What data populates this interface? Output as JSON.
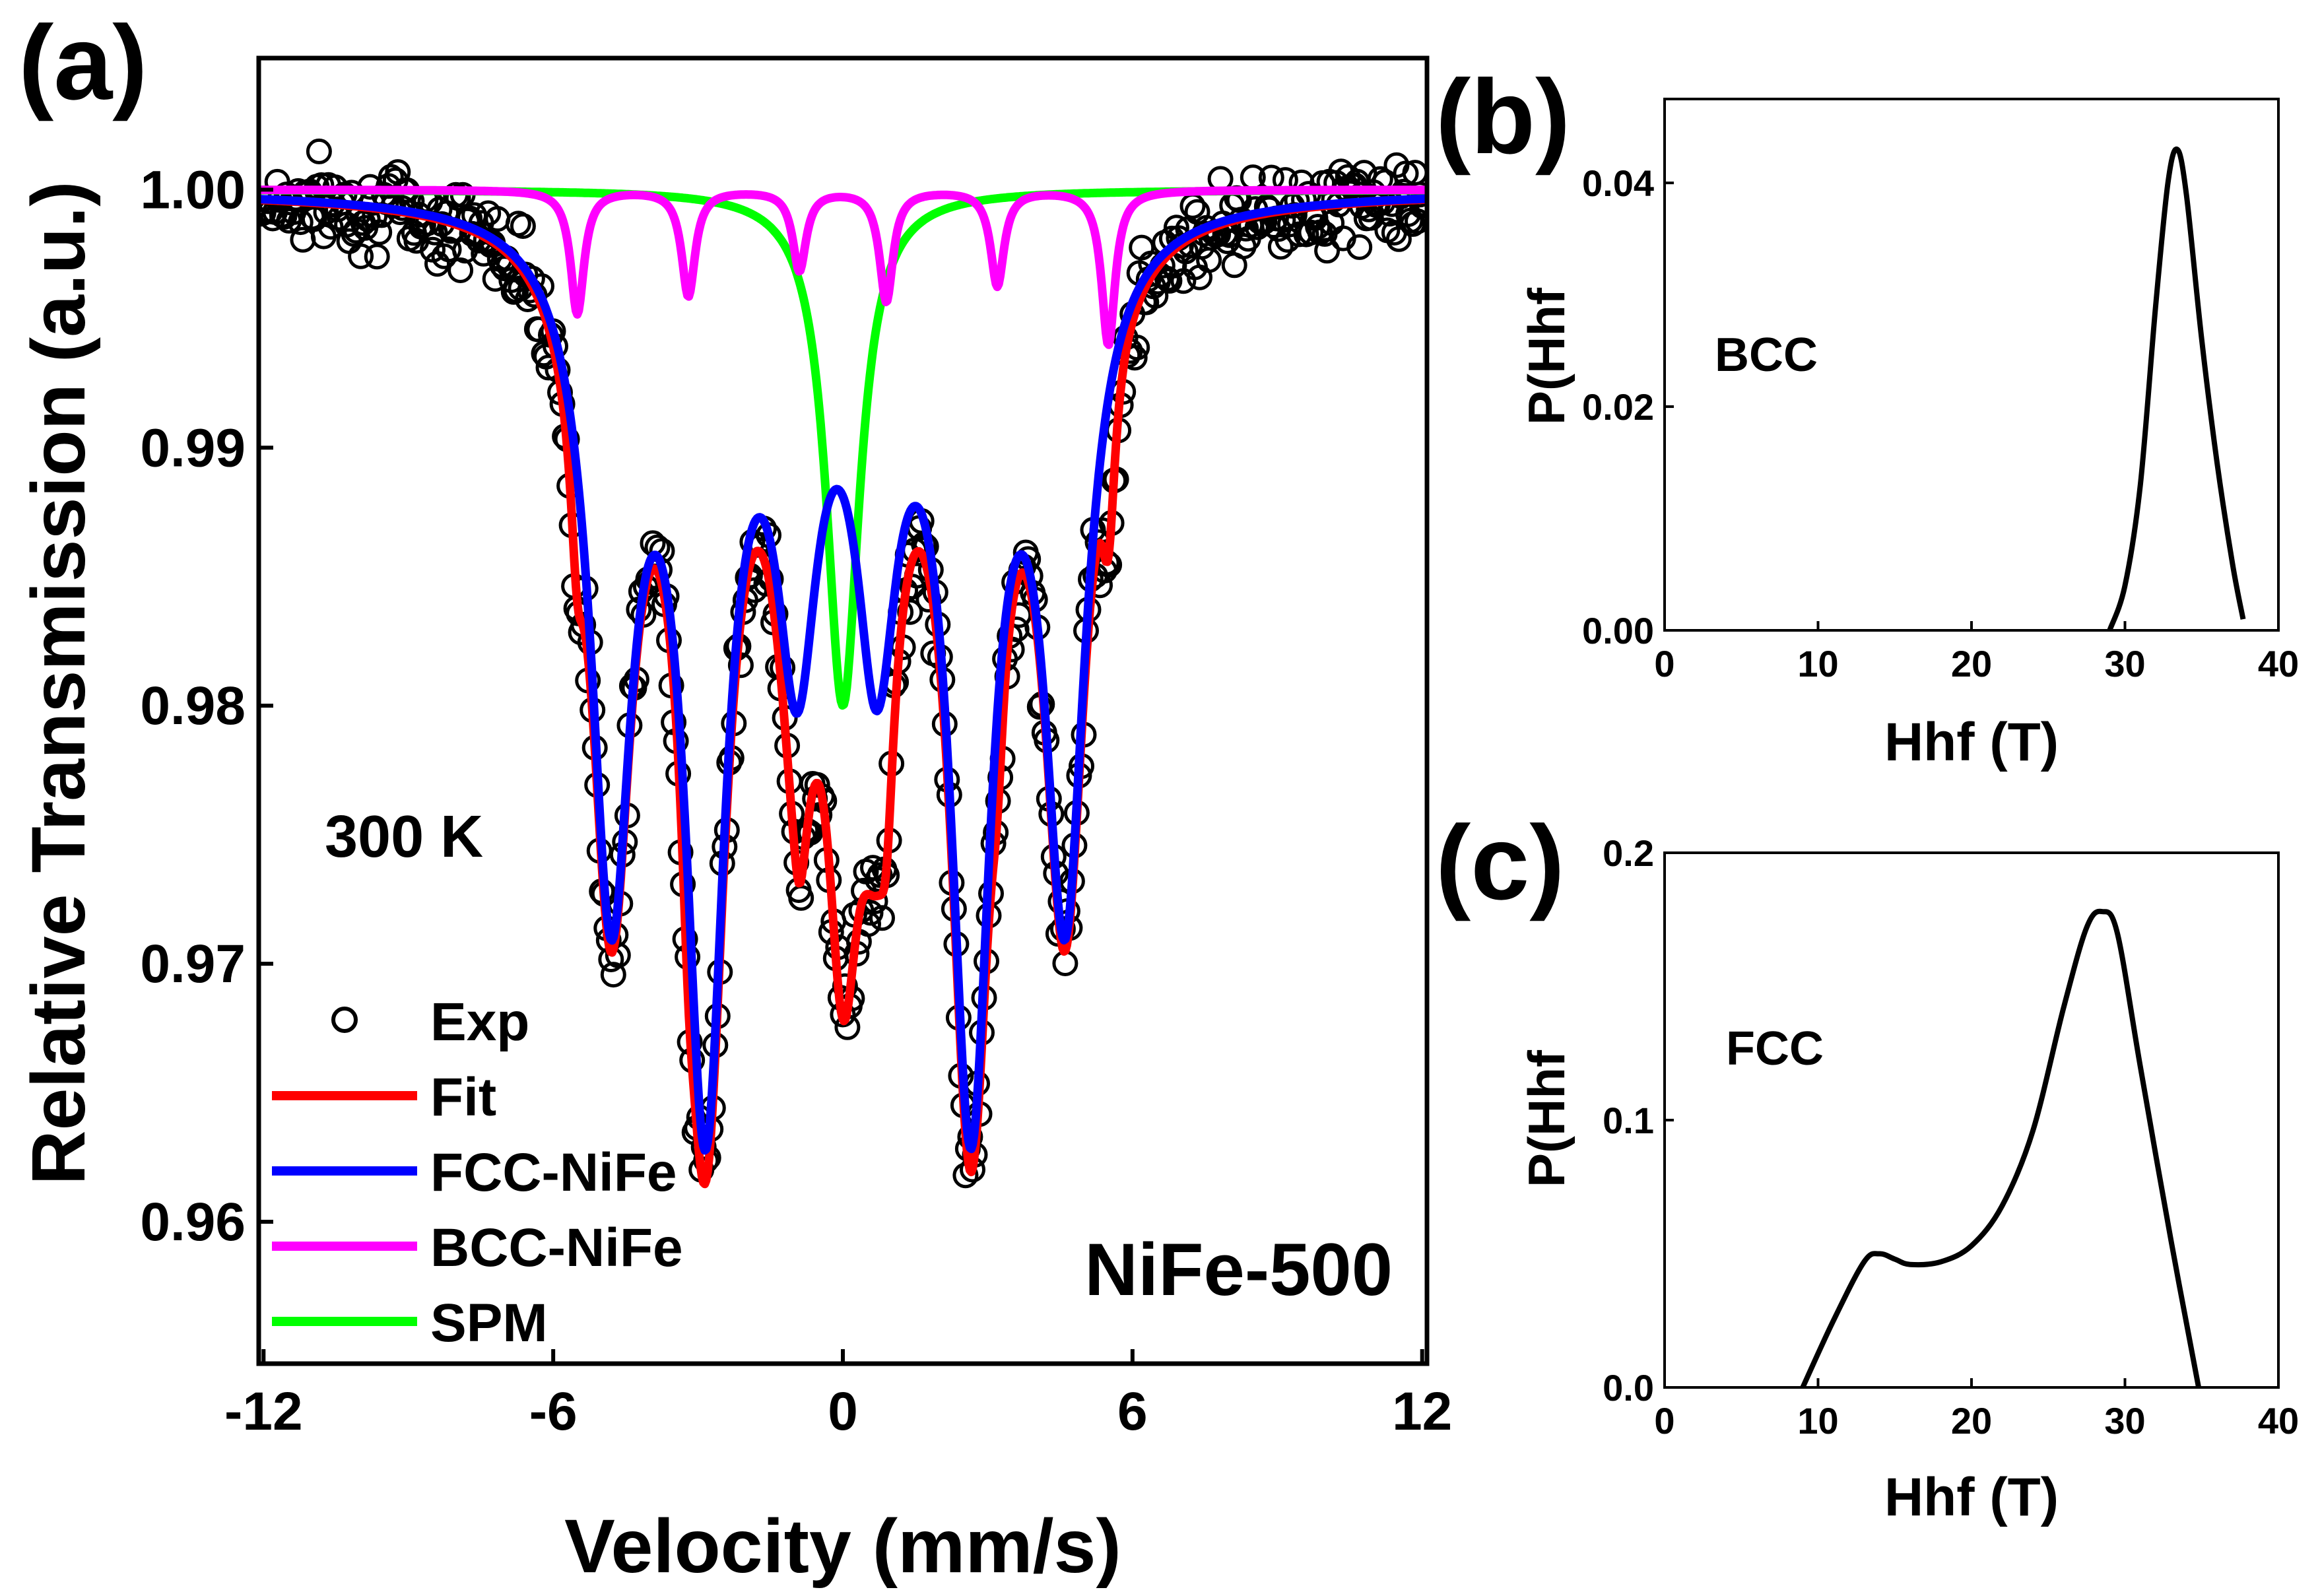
{
  "chart_data": [
    {
      "panel": "(a)",
      "type": "scatter",
      "xlabel": "Velocity (mm/s)",
      "ylabel": "Relative Transmission (a.u.)",
      "xlim": [
        -12.1,
        12.1
      ],
      "ylim": [
        0.9545,
        1.0051
      ],
      "xticks": [
        -12,
        -6,
        0,
        6,
        12
      ],
      "xtick_labels": [
        "-12",
        "-6",
        "0",
        "6",
        "12"
      ],
      "yticks": [
        0.96,
        0.97,
        0.98,
        0.99,
        1.0
      ],
      "ytick_labels": [
        "0.96",
        "0.97",
        "0.98",
        "0.99",
        "1.00"
      ],
      "grid": false,
      "legend_position": "bottom-left",
      "annotations": [
        "300 K",
        "NiFe-500"
      ],
      "fcc_sextet_positions": [
        -4.8,
        -2.85,
        -0.95,
        0.7,
        2.65,
        4.6
      ],
      "fcc_sextet_depths": [
        0.0262,
        0.0337,
        0.0152,
        0.0152,
        0.0337,
        0.0262
      ],
      "bcc_sextet_positions": [
        -5.5,
        -3.2,
        -0.9,
        0.9,
        3.2,
        5.5
      ],
      "bcc_sextet_depths": [
        0.0048,
        0.0041,
        0.0031,
        0.0043,
        0.0037,
        0.006
      ],
      "spm_center": 0.0,
      "spm_depth": 0.02,
      "series": [
        {
          "name": "Exp",
          "style": "open-circle",
          "color": "#000000"
        },
        {
          "name": "Fit",
          "style": "line",
          "color": "#ff0000"
        },
        {
          "name": "FCC-NiFe",
          "style": "line",
          "color": "#0000ff"
        },
        {
          "name": "BCC-NiFe",
          "style": "line",
          "color": "#ff00ff"
        },
        {
          "name": "SPM",
          "style": "line",
          "color": "#00ff00"
        }
      ]
    },
    {
      "panel": "(b)",
      "type": "line",
      "xlabel": "Hhf (T)",
      "ylabel": "P(Hhf",
      "xlim": [
        0,
        40
      ],
      "ylim": [
        0,
        0.0475
      ],
      "xticks": [
        0,
        10,
        20,
        30,
        40
      ],
      "xtick_labels": [
        "0",
        "10",
        "20",
        "30",
        "40"
      ],
      "yticks": [
        0,
        0.02,
        0.04
      ],
      "ytick_labels": [
        "0.00",
        "0.02",
        "0.04"
      ],
      "annotation": "BCC",
      "x": [
        29.0,
        30.0,
        31.0,
        32.0,
        32.8,
        33.4,
        34.0,
        35.0,
        36.0,
        37.0,
        37.7
      ],
      "y": [
        0.0,
        0.004,
        0.013,
        0.029,
        0.04,
        0.043,
        0.039,
        0.026,
        0.015,
        0.006,
        0.001
      ]
    },
    {
      "panel": "(c)",
      "type": "line",
      "xlabel": "Hhf (T)",
      "ylabel": "P(Hhf",
      "xlim": [
        0,
        40
      ],
      "ylim": [
        0,
        0.2
      ],
      "xticks": [
        0,
        10,
        20,
        30,
        40
      ],
      "xtick_labels": [
        "0",
        "10",
        "20",
        "30",
        "40"
      ],
      "yticks": [
        0,
        0.1,
        0.2
      ],
      "ytick_labels": [
        "0.0",
        "0.1",
        "0.2"
      ],
      "annotation": "FCC",
      "x": [
        9.0,
        11.0,
        13.0,
        14.0,
        15.0,
        16.0,
        18.0,
        20.0,
        22.0,
        24.0,
        26.0,
        27.5,
        28.5,
        29.5,
        31.0,
        33.0,
        34.8
      ],
      "y": [
        0.0,
        0.025,
        0.047,
        0.05,
        0.048,
        0.046,
        0.047,
        0.053,
        0.068,
        0.096,
        0.142,
        0.172,
        0.178,
        0.17,
        0.12,
        0.055,
        0.0
      ]
    }
  ],
  "panel_labels": {
    "a": "(a)",
    "b": "(b)",
    "c": "(c)"
  },
  "colors": {
    "exp": "#000000",
    "fit": "#ff0000",
    "fcc": "#0000ff",
    "bcc": "#ff00ff",
    "spm": "#00ff00"
  }
}
